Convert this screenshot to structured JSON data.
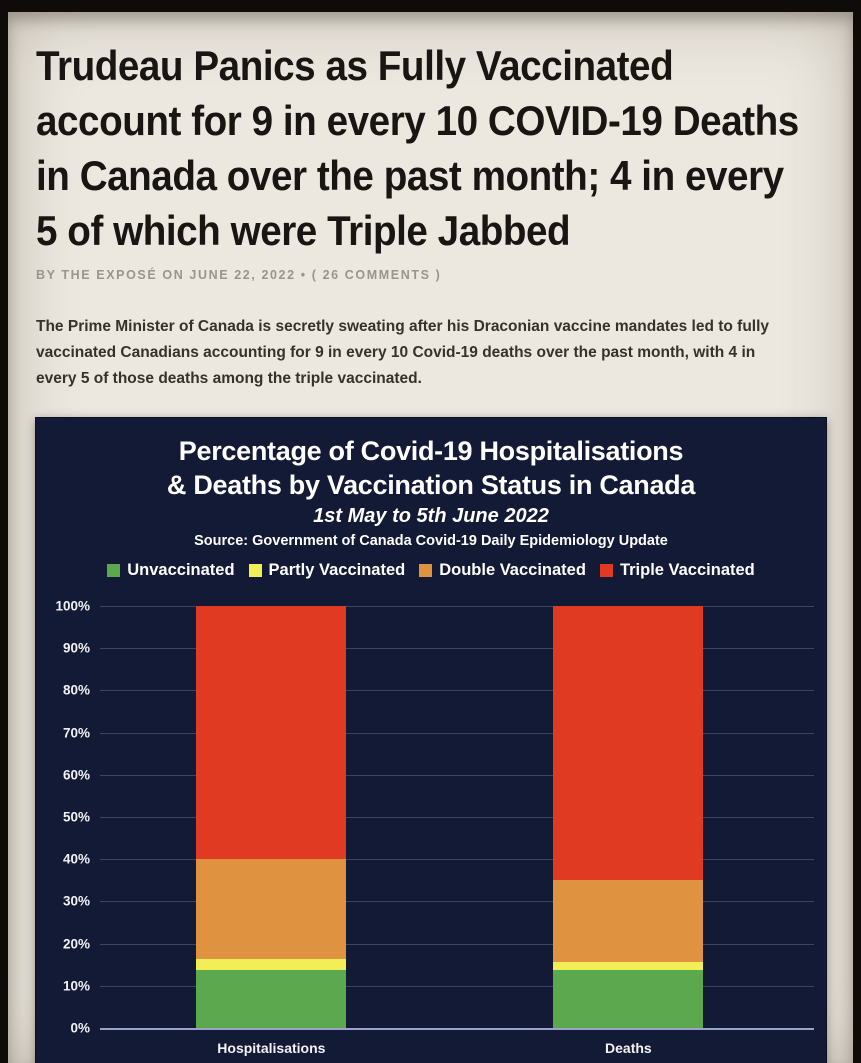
{
  "article": {
    "headline_lines": [
      "Trudeau Panics as Fully Vaccinated",
      "account for 9 in every 10 COVID-19 Deaths",
      "in Canada over the past month; 4 in every",
      "5 of which were Triple Jabbed"
    ],
    "byline": "BY THE EXPOSÉ ON JUNE 22, 2022 • ( 26 COMMENTS )",
    "paragraph": "The Prime Minister of Canada is secretly sweating after his Draconian vaccine mandates led to fully vaccinated Canadians accounting for 9 in every 10 Covid-19 deaths over the past month, with 4 in every 5 of those deaths among the triple vaccinated."
  },
  "chart_data": {
    "type": "bar",
    "stacked": true,
    "title_line1": "Percentage of Covid-19 Hospitalisations",
    "title_line2": "& Deaths by Vaccination Status in Canada",
    "subtitle": "1st May to 5th June 2022",
    "source": "Source: Government of Canada Covid-19 Daily Epidemiology Update",
    "categories": [
      "Hospitalisations",
      "Deaths"
    ],
    "category_centers_pct": [
      24,
      74
    ],
    "series": [
      {
        "name": "Unvaccinated",
        "color": "#5ca84e",
        "values": [
          13.7,
          13.7
        ]
      },
      {
        "name": "Partly Vaccinated",
        "color": "#f2ee56",
        "values": [
          2.6,
          1.9
        ]
      },
      {
        "name": "Double Vaccinated",
        "color": "#df923f",
        "values": [
          23.7,
          19.4
        ]
      },
      {
        "name": "Triple Vaccinated",
        "color": "#e13a22",
        "values": [
          60.0,
          65.0
        ]
      }
    ],
    "yticks": [
      "100%",
      "90%",
      "80%",
      "70%",
      "60%",
      "50%",
      "40%",
      "30%",
      "20%",
      "10%",
      "0%"
    ],
    "ylim": [
      0,
      100
    ],
    "grid": true,
    "legend_position": "top"
  },
  "colors": {
    "page_frame": "#0e0b09",
    "article_bg": "#ece8e0",
    "headline_text": "#181512",
    "byline_text": "#9a948b",
    "chart_bg": "#121a35",
    "chart_text": "#ffffff",
    "gridline": "#59618c",
    "unvaccinated": "#5ca84e",
    "partly_vaccinated": "#f2ee56",
    "double_vaccinated": "#df923f",
    "triple_vaccinated": "#e13a22"
  }
}
